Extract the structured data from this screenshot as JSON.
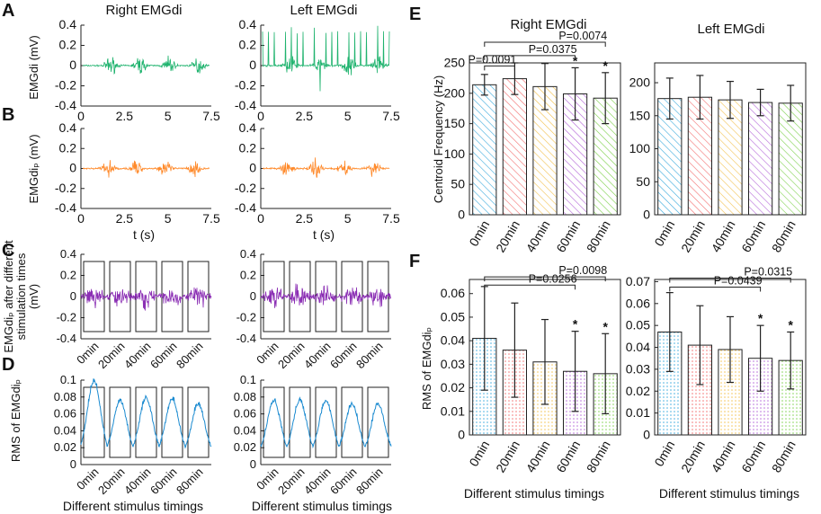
{
  "panel_labels": {
    "A": "A",
    "B": "B",
    "C": "C",
    "D": "D",
    "E": "E",
    "F": "F"
  },
  "colors": {
    "green": "#1fb36e",
    "orange": "#ff8a2b",
    "purple": "#8b2fb4",
    "blue": "#1a8ad0",
    "bar_colors": [
      "#39a9dc",
      "#f26d6d",
      "#f2c14e",
      "#b466d8",
      "#7fd14e"
    ]
  },
  "left": {
    "title_right": "Right EMGdi",
    "title_left": "Left EMGdi",
    "A": {
      "ylabel": "EMGdi (mV)",
      "yticks": [
        "0.4",
        "0.2",
        "0",
        "-0.2",
        "-0.4"
      ],
      "xticks": [
        "0",
        "2.5",
        "5",
        "7.5"
      ]
    },
    "B": {
      "ylabel": "EMGdiₚ (mV)",
      "yticks": [
        "0.4",
        "0.2",
        "0",
        "-0.2",
        "-0.4"
      ],
      "xticks": [
        "0",
        "2.5",
        "5",
        "7.5"
      ],
      "xlabel": "t (s)"
    },
    "C": {
      "ylabel_lines": [
        "EMGdiₚ after different",
        "stimulation times",
        "(mV)"
      ],
      "yticks": [
        "0.4",
        "0.2",
        "0",
        "-0.2",
        "-0.4"
      ],
      "xticks": [
        "0min",
        "20min",
        "40min",
        "60min",
        "80min"
      ]
    },
    "D": {
      "ylabel": "RMS of EMGdiₚ",
      "yticks": [
        "0.1",
        "0.08",
        "0.06",
        "0.04",
        "0.02",
        "0"
      ],
      "xticks": [
        "0min",
        "20min",
        "40min",
        "60min",
        "80min"
      ],
      "xlabel": "Different stimulus timings"
    }
  },
  "chart_data": [
    {
      "id": "E-right",
      "type": "bar",
      "title": "Right EMGdi",
      "ylabel": "Centroid Frequency (Hz)",
      "categories": [
        "0min",
        "20min",
        "40min",
        "60min",
        "80min"
      ],
      "values": [
        214,
        224,
        211,
        199,
        192
      ],
      "errors": [
        17,
        26,
        38,
        43,
        42
      ],
      "ylim": [
        0,
        250
      ],
      "yticks": [
        "0",
        "50",
        "100",
        "150",
        "200",
        "250"
      ],
      "stars": [
        "",
        "",
        "",
        "*",
        "*"
      ],
      "brackets": [
        {
          "from": 0,
          "to": 1,
          "label": "P=0.0091",
          "y": 245
        },
        {
          "from": 0,
          "to": 3,
          "label": "P=0.0375",
          "y": 262
        },
        {
          "from": 0,
          "to": 4,
          "label": "P=0.0074",
          "y": 284
        }
      ]
    },
    {
      "id": "E-left",
      "type": "bar",
      "title": "Left EMGdi",
      "ylabel": "",
      "categories": [
        "0min",
        "20min",
        "40min",
        "60min",
        "80min"
      ],
      "values": [
        176,
        178,
        174,
        170,
        169
      ],
      "errors": [
        31,
        33,
        28,
        20,
        27
      ],
      "ylim": [
        0,
        230
      ],
      "yticks": [
        "0",
        "50",
        "100",
        "150",
        "200"
      ],
      "stars": [
        "",
        "",
        "",
        "",
        ""
      ],
      "brackets": []
    },
    {
      "id": "F-right",
      "type": "bar",
      "title": "",
      "ylabel": "RMS of EMGdiₚ",
      "xlabel": "Different stimulus timings",
      "categories": [
        "0min",
        "20min",
        "40min",
        "60min",
        "80min"
      ],
      "values": [
        0.041,
        0.036,
        0.031,
        0.027,
        0.026
      ],
      "errors": [
        0.022,
        0.02,
        0.018,
        0.017,
        0.017
      ],
      "ylim": [
        0,
        0.066
      ],
      "yticks": [
        "0",
        "0.01",
        "0.02",
        "0.03",
        "0.04",
        "0.05",
        "0.06"
      ],
      "stars": [
        "",
        "",
        "",
        "*",
        "*"
      ],
      "brackets": [
        {
          "from": 0,
          "to": 3,
          "label": "P=0.0256",
          "y": 0.0636
        },
        {
          "from": 0,
          "to": 4,
          "label": "P=0.0098",
          "y": 0.0671
        }
      ]
    },
    {
      "id": "F-left",
      "type": "bar",
      "title": "",
      "ylabel": "",
      "xlabel": "Different stimulus timings",
      "categories": [
        "0min",
        "20min",
        "40min",
        "60min",
        "80min"
      ],
      "values": [
        0.047,
        0.041,
        0.039,
        0.035,
        0.034
      ],
      "errors": [
        0.018,
        0.018,
        0.015,
        0.015,
        0.013
      ],
      "ylim": [
        0,
        0.071
      ],
      "yticks": [
        "0",
        "0.01",
        "0.02",
        "0.03",
        "0.04",
        "0.05",
        "0.06",
        "0.07"
      ],
      "stars": [
        "",
        "",
        "",
        "*",
        "*"
      ],
      "brackets": [
        {
          "from": 0,
          "to": 3,
          "label": "P=0.0439",
          "y": 0.0675
        },
        {
          "from": 0,
          "to": 4,
          "label": "P=0.0315",
          "y": 0.0716
        }
      ]
    }
  ]
}
